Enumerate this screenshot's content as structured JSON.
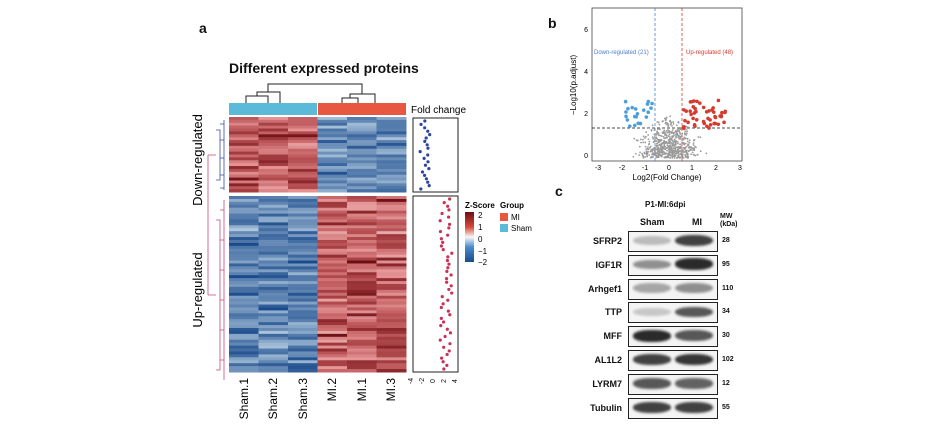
{
  "panel_a": {
    "label": "a",
    "title": "Different expressed proteins",
    "fold_change_label": "Fold change",
    "down_label": "Down-regulated",
    "up_label": "Up-regulated",
    "samples": [
      "Sham.1",
      "Sham.2",
      "Sham.3",
      "MI.2",
      "MI.1",
      "MI.3"
    ],
    "fc_ticks": [
      "-4",
      "-2",
      "0",
      "2",
      "4"
    ],
    "legend": {
      "zscore_title": "Z-Score",
      "zscore_ticks": [
        "2",
        "1",
        "0",
        "−1",
        "−2"
      ],
      "group_title": "Group",
      "groups": [
        {
          "name": "MI",
          "color": "#e8573f"
        },
        {
          "name": "Sham",
          "color": "#5bbad8"
        }
      ]
    },
    "colors": {
      "high": "#6b0f14",
      "mid": "#f7f7f7",
      "low": "#1a4b8c",
      "up_dot": "#c83258",
      "down_dot": "#2b45a0"
    }
  },
  "panel_b": {
    "label": "b",
    "down_text": "Down-regulated (21)",
    "up_text": "Up-regulated (48)",
    "xlabel": "Log2(Fold Change)",
    "ylabel": "−Log10(p.adjust)",
    "x_ticks": [
      "-3",
      "-2",
      "-1",
      "0",
      "1",
      "2",
      "3"
    ],
    "y_ticks": [
      "0",
      "2",
      "4",
      "6"
    ],
    "colors": {
      "down": "#4a9fd8",
      "up": "#d63a2e",
      "ns": "#9a9a9a"
    }
  },
  "panel_c": {
    "label": "c",
    "title": "P1-MI:6dpi",
    "col_sham": "Sham",
    "col_mi": "MI",
    "mw_header": "MW (kDa)",
    "rows": [
      {
        "protein": "SFRP2",
        "mw": "28"
      },
      {
        "protein": "IGF1R",
        "mw": "95"
      },
      {
        "protein": "Arhgef1",
        "mw": "110"
      },
      {
        "protein": "TTP",
        "mw": "34"
      },
      {
        "protein": "MFF",
        "mw": "30"
      },
      {
        "protein": "AL1L2",
        "mw": "102"
      },
      {
        "protein": "LYRM7",
        "mw": "12"
      },
      {
        "protein": "Tubulin",
        "mw": "55"
      }
    ]
  }
}
